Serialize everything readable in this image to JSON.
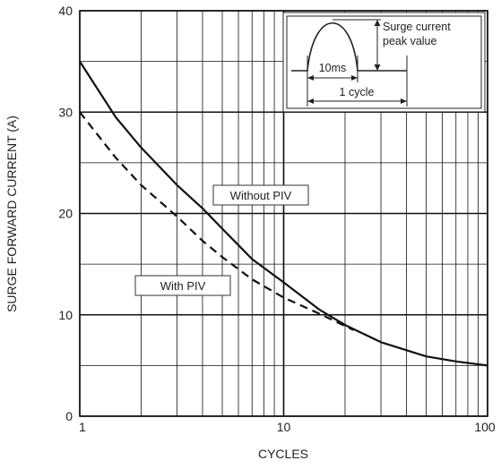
{
  "chart_data": {
    "type": "line",
    "x_scale": "log",
    "xlim": [
      1,
      100
    ],
    "ylim": [
      0,
      40
    ],
    "xlabel": "CYCLES",
    "ylabel": "SURGE FORWARD CURRENT (A)",
    "x_ticks": [
      1,
      10,
      100
    ],
    "x_tick_labels": [
      "1",
      "10",
      "100"
    ],
    "y_ticks": [
      0,
      10,
      20,
      30,
      40
    ],
    "y_tick_labels": [
      "0",
      "10",
      "20",
      "30",
      "40"
    ],
    "grid": true,
    "series": [
      {
        "name": "Without PIV",
        "style": "solid",
        "x": [
          1,
          1.5,
          2,
          3,
          4,
          5,
          7,
          10,
          15,
          20,
          30,
          50,
          70,
          100
        ],
        "y": [
          35,
          29.5,
          26.5,
          22.8,
          20.5,
          18.5,
          15.5,
          13.2,
          10.5,
          9.0,
          7.3,
          5.9,
          5.4,
          5.0
        ]
      },
      {
        "name": "With PIV",
        "style": "dashed",
        "x": [
          1,
          1.5,
          2,
          3,
          4,
          5,
          7,
          10,
          15,
          20,
          22
        ],
        "y": [
          30,
          25.5,
          22.8,
          19.7,
          17.3,
          15.7,
          13.5,
          11.7,
          10.1,
          8.9,
          8.5
        ]
      }
    ],
    "annotations": {
      "without_piv": "Without PIV",
      "with_piv": "With PIV",
      "inset_peak_line1": "Surge current",
      "inset_peak_line2": "peak value",
      "inset_pulse": "10ms",
      "inset_cycle": "1 cycle"
    }
  }
}
